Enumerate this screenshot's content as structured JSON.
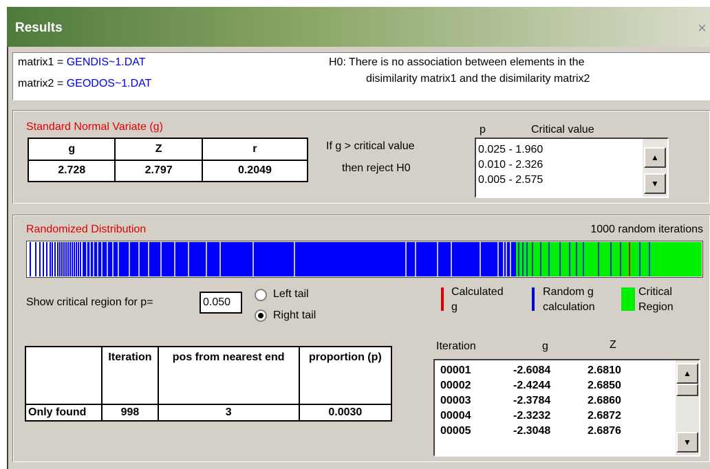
{
  "window": {
    "title": "Results",
    "close": "×"
  },
  "files": {
    "matrix1_label": "matrix1 =",
    "matrix1": "GENDIS~1.DAT",
    "matrix2_label": "matrix2 =",
    "matrix2": "GEODOS~1.DAT"
  },
  "hypothesis": [
    "H0: There is no association between elements in the",
    "disimilarity matrix1 and the disimilarity matrix2"
  ],
  "normal_variate": {
    "title": "Standard Normal Variate (g)",
    "headers": [
      "g",
      "Z",
      "r"
    ],
    "values": [
      "2.728",
      "2.797",
      "0.2049"
    ],
    "rule": [
      "If g > critical value",
      "then reject H0"
    ],
    "critical_headers": [
      "p",
      "Critical value"
    ],
    "critical_values": [
      "0.025 - 1.960",
      "0.010 - 2.326",
      "0.005 - 2.575"
    ]
  },
  "distribution": {
    "title": "Randomized Distribution",
    "iterations_note": "1000 random iterations",
    "p_label": "Show critical region for p=",
    "p_value": "0.050",
    "tails": [
      "Left tail",
      "Right tail"
    ],
    "legend": [
      [
        "Calculated",
        "g"
      ],
      [
        "Random g",
        "calculation"
      ],
      [
        "Critical",
        "Region"
      ]
    ]
  },
  "results_table": {
    "headers": [
      "Iteration",
      "pos from nearest end",
      "proportion (p)"
    ],
    "row_label": "Only found",
    "values": [
      "998",
      "3",
      "0.0030"
    ]
  },
  "iteration_list": {
    "headers": [
      "Iteration",
      "g",
      "Z"
    ],
    "rows": [
      [
        "00001",
        "-2.6084",
        "2.6810"
      ],
      [
        "00002",
        "-2.4244",
        "2.6850"
      ],
      [
        "00003",
        "-2.3784",
        "2.6860"
      ],
      [
        "00004",
        "-2.3232",
        "2.6872"
      ],
      [
        "00005",
        "-2.3048",
        "2.6876"
      ]
    ]
  }
}
